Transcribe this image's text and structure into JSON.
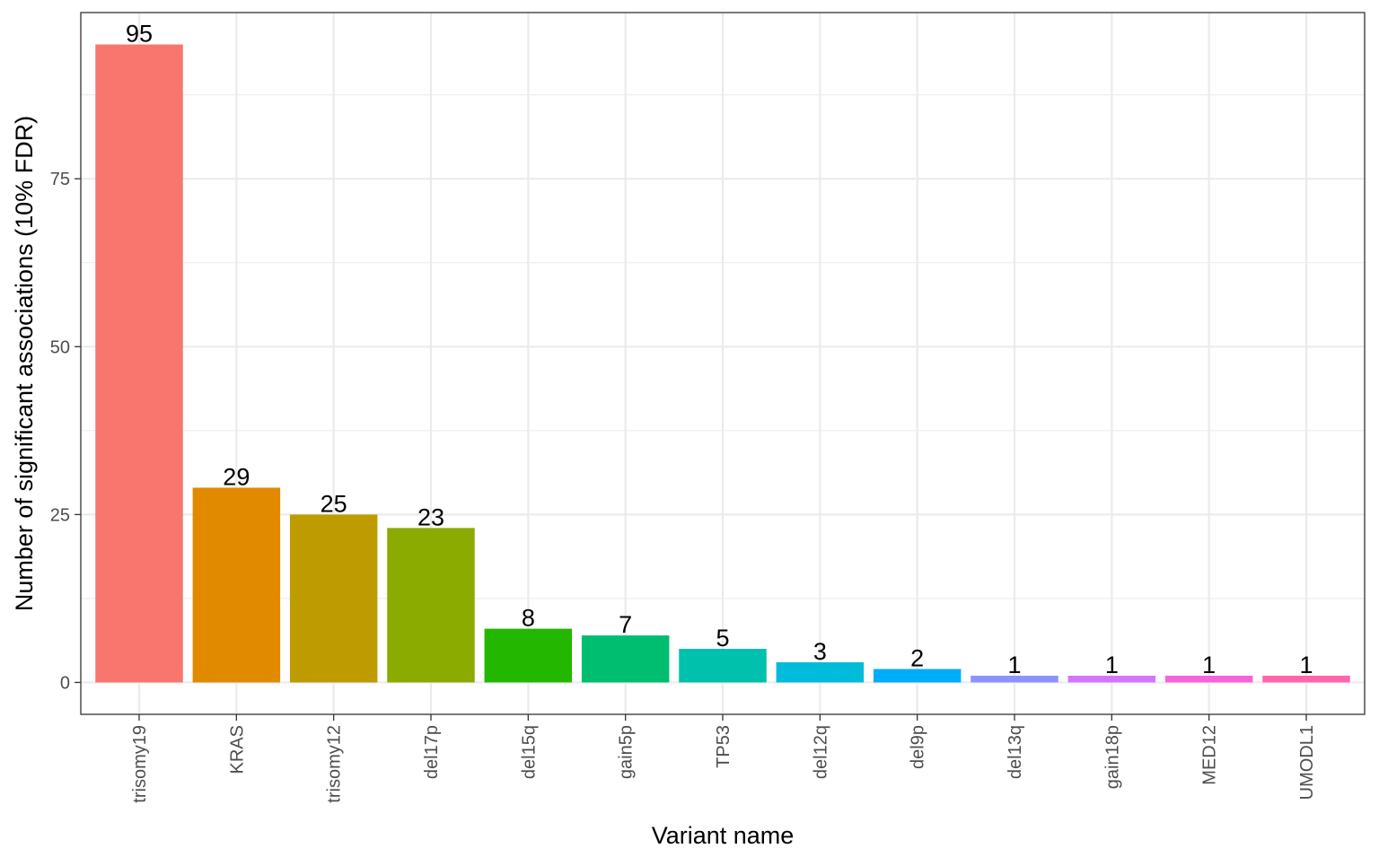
{
  "chart_data": {
    "type": "bar",
    "title": "",
    "xlabel": "Variant name",
    "ylabel": "Number of significant associations (10% FDR)",
    "categories": [
      "trisomy19",
      "KRAS",
      "trisomy12",
      "del17p",
      "del15q",
      "gain5p",
      "TP53",
      "del12q",
      "del9p",
      "del13q",
      "gain18p",
      "MED12",
      "UMODL1"
    ],
    "values": [
      95,
      29,
      25,
      23,
      8,
      7,
      5,
      3,
      2,
      1,
      1,
      1,
      1
    ],
    "value_labels": [
      "95",
      "29",
      "25",
      "23",
      "8",
      "7",
      "5",
      "3",
      "2",
      "1",
      "1",
      "1",
      "1"
    ],
    "colors": [
      "#F8766D",
      "#E18A00",
      "#BE9C00",
      "#8CAB00",
      "#24B700",
      "#00BE70",
      "#00C1AB",
      "#00BBDA",
      "#00ACFC",
      "#8B93FF",
      "#D575FE",
      "#F962DD",
      "#FF65AC"
    ],
    "ylim": [
      -4.75,
      99.75
    ],
    "yticks": [
      0,
      25,
      50,
      75
    ],
    "ytick_labels": [
      "0",
      "25",
      "50",
      "75"
    ],
    "yminor": [
      12.5,
      37.5,
      62.5,
      87.5
    ],
    "grid": true,
    "legend": "none",
    "theme": "bw"
  }
}
